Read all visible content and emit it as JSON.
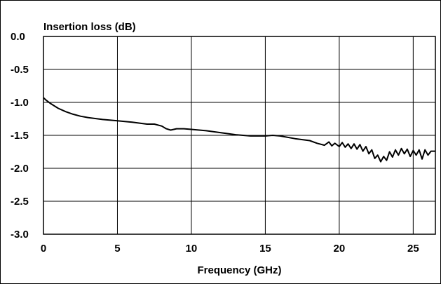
{
  "chart_data": {
    "type": "line",
    "title": "",
    "xlabel": "Frequency (GHz)",
    "ylabel": "Insertion loss (dB)",
    "xlim": [
      0,
      26.5
    ],
    "ylim": [
      -3.0,
      0.0
    ],
    "grid": true,
    "x_ticks": [
      "0",
      "5",
      "10",
      "15",
      "20",
      "25"
    ],
    "y_ticks": [
      "0.0",
      "-0.5",
      "-1.0",
      "-1.5",
      "-2.0",
      "-2.5",
      "-3.0"
    ],
    "series": [
      {
        "x": [
          0,
          0.2,
          0.5,
          1,
          1.5,
          2,
          2.5,
          3,
          4,
          5,
          6,
          7,
          7.5,
          8,
          8.3,
          8.6,
          9,
          9.5,
          10,
          11,
          12,
          13,
          14,
          15,
          15.5,
          16,
          17,
          18,
          18.5,
          19,
          19.3,
          19.5,
          19.7,
          20,
          20.2,
          20.4,
          20.6,
          20.8,
          21,
          21.2,
          21.4,
          21.6,
          21.8,
          22,
          22.2,
          22.4,
          22.6,
          22.8,
          23,
          23.2,
          23.4,
          23.6,
          23.8,
          24,
          24.2,
          24.4,
          24.6,
          24.8,
          25,
          25.2,
          25.4,
          25.6,
          25.8,
          26,
          26.2,
          26.5
        ],
        "y": [
          -0.93,
          -0.97,
          -1.02,
          -1.09,
          -1.14,
          -1.18,
          -1.21,
          -1.23,
          -1.26,
          -1.28,
          -1.3,
          -1.33,
          -1.33,
          -1.36,
          -1.4,
          -1.42,
          -1.4,
          -1.4,
          -1.41,
          -1.43,
          -1.46,
          -1.49,
          -1.51,
          -1.51,
          -1.5,
          -1.51,
          -1.55,
          -1.58,
          -1.62,
          -1.65,
          -1.6,
          -1.66,
          -1.62,
          -1.67,
          -1.61,
          -1.68,
          -1.63,
          -1.7,
          -1.63,
          -1.71,
          -1.64,
          -1.74,
          -1.67,
          -1.78,
          -1.72,
          -1.85,
          -1.8,
          -1.9,
          -1.82,
          -1.88,
          -1.75,
          -1.83,
          -1.72,
          -1.8,
          -1.7,
          -1.78,
          -1.71,
          -1.82,
          -1.73,
          -1.8,
          -1.72,
          -1.86,
          -1.72,
          -1.8,
          -1.74,
          -1.74
        ]
      }
    ]
  }
}
